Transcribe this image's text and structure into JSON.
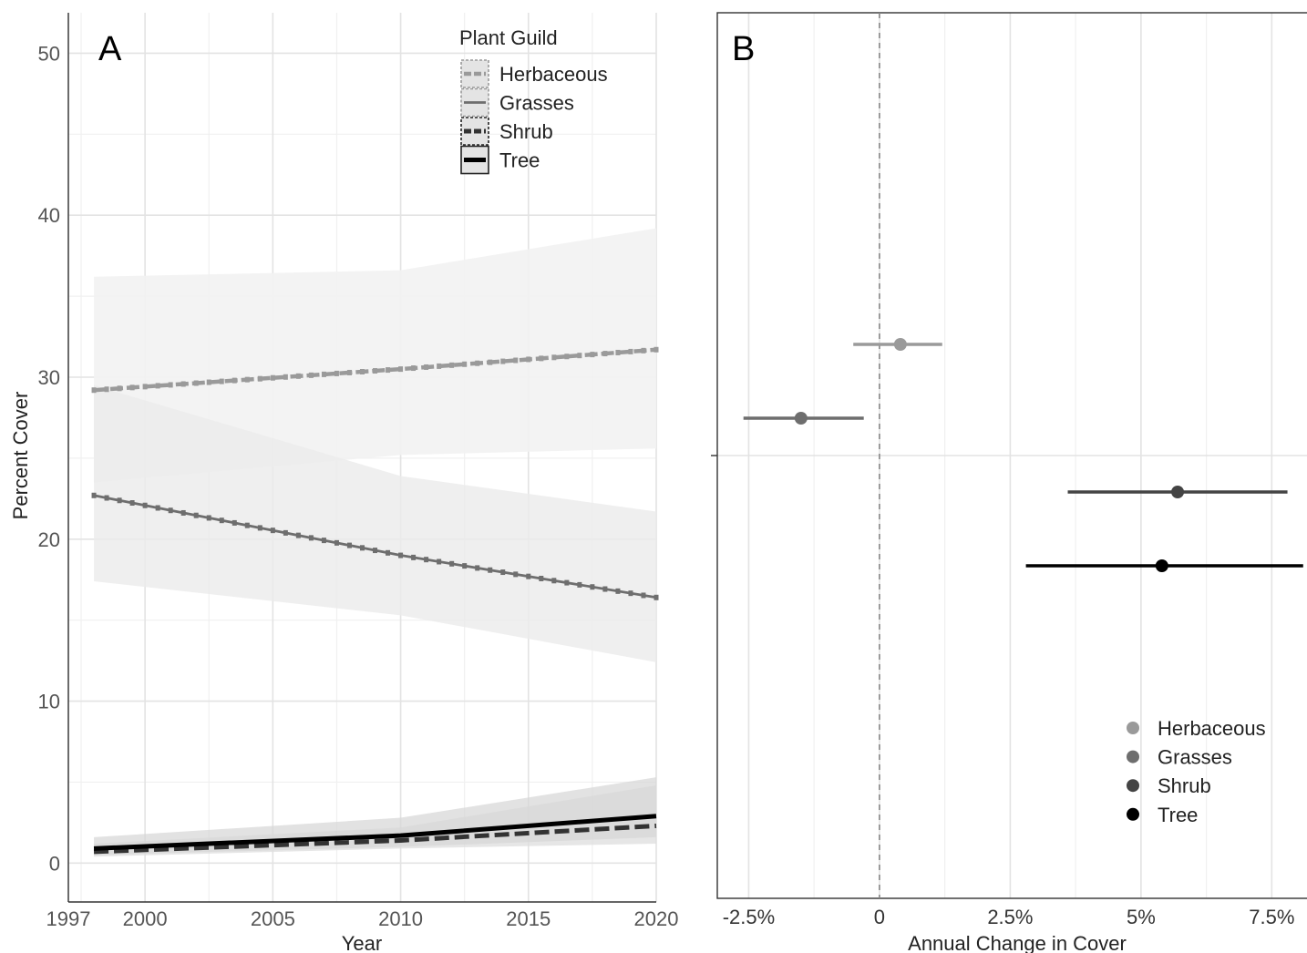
{
  "chart_data": [
    {
      "panel_label": "A",
      "type": "line",
      "xlabel": "Year",
      "ylabel": "Percent Cover",
      "xlim": [
        1997,
        2020
      ],
      "ylim": [
        -2.4,
        52.5
      ],
      "x_ticks": [
        1997,
        2000,
        2005,
        2010,
        2015,
        2020
      ],
      "y_ticks": [
        0,
        10,
        20,
        30,
        40,
        50
      ],
      "grid": true,
      "legend": {
        "title": "Plant Guild",
        "position": "top-right"
      },
      "series": [
        {
          "name": "Herbaceous",
          "color": "#9a9a9a",
          "x": [
            1998,
            2010,
            2020
          ],
          "y": [
            29.2,
            30.5,
            31.7
          ],
          "lower": [
            23.5,
            25.2,
            25.6
          ],
          "upper": [
            36.2,
            36.6,
            39.2
          ]
        },
        {
          "name": "Grasses",
          "color": "#6e6e6e",
          "x": [
            1998,
            2010,
            2020
          ],
          "y": [
            22.7,
            19.0,
            16.4
          ],
          "lower": [
            17.4,
            15.3,
            12.4
          ],
          "upper": [
            29.5,
            23.9,
            21.7
          ]
        },
        {
          "name": "Shrub",
          "color": "#333333",
          "x": [
            1998,
            2010,
            2020
          ],
          "y": [
            0.7,
            1.4,
            2.3
          ],
          "lower": [
            0.4,
            0.9,
            1.2
          ],
          "upper": [
            1.2,
            2.2,
            4.8
          ]
        },
        {
          "name": "Tree",
          "color": "#000000",
          "x": [
            1998,
            2010,
            2020
          ],
          "y": [
            0.9,
            1.7,
            2.9
          ],
          "lower": [
            0.5,
            1.0,
            1.6
          ],
          "upper": [
            1.6,
            2.8,
            5.3
          ]
        }
      ]
    },
    {
      "panel_label": "B",
      "type": "scatter",
      "xlabel": "Annual Change in Cover",
      "ylabel": "",
      "xlim": [
        -3.1,
        8.4
      ],
      "x_ticks": [
        -2.5,
        0,
        2.5,
        5,
        7.5
      ],
      "x_tick_labels": [
        "-2.5%",
        "0",
        "2.5%",
        "5%",
        "7.5%"
      ],
      "reference_line_x": 0,
      "grid": true,
      "legend": {
        "position": "bottom-right"
      },
      "series": [
        {
          "name": "Herbaceous",
          "color": "#9a9a9a",
          "estimate": 0.4,
          "lower": -0.5,
          "upper": 1.2
        },
        {
          "name": "Grasses",
          "color": "#6e6e6e",
          "estimate": -1.5,
          "lower": -2.6,
          "upper": -0.3
        },
        {
          "name": "Shrub",
          "color": "#444444",
          "estimate": 5.7,
          "lower": 3.6,
          "upper": 7.8
        },
        {
          "name": "Tree",
          "color": "#000000",
          "estimate": 5.4,
          "lower": 2.8,
          "upper": 8.1
        }
      ]
    }
  ]
}
